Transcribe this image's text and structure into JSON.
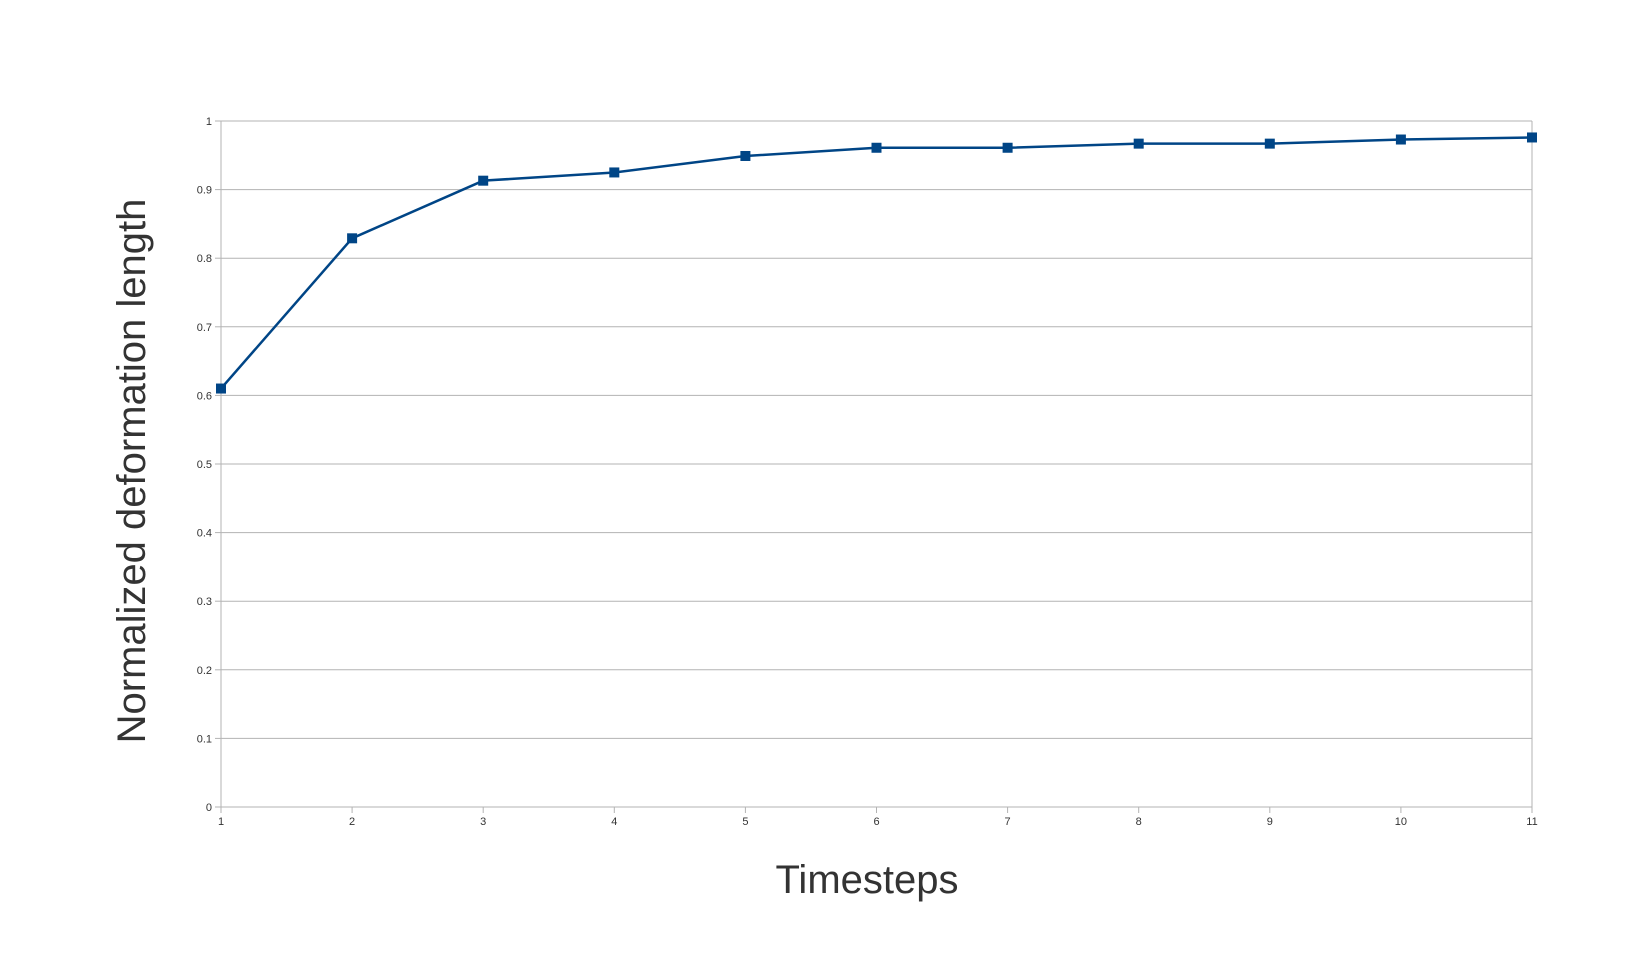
{
  "chart_data": {
    "type": "line",
    "title": "",
    "xlabel": "Timesteps",
    "ylabel": "Normalized deformation length",
    "x": [
      1,
      2,
      3,
      4,
      5,
      6,
      7,
      8,
      9,
      10,
      11
    ],
    "series": [
      {
        "values": [
          0.61,
          0.829,
          0.913,
          0.925,
          0.949,
          0.961,
          0.961,
          0.967,
          0.967,
          0.973,
          0.976
        ]
      }
    ],
    "x_ticks": [
      "1",
      "2",
      "3",
      "4",
      "5",
      "6",
      "7",
      "8",
      "9",
      "10",
      "11"
    ],
    "y_ticks": [
      "0",
      "0.1",
      "0.2",
      "0.3",
      "0.4",
      "0.5",
      "0.6",
      "0.7",
      "0.8",
      "0.9",
      "1"
    ],
    "xlim": [
      1,
      11
    ],
    "ylim": [
      0,
      1
    ],
    "grid": "horizontal",
    "marker": "square",
    "line_color": "#004586",
    "grid_color": "#b3b3b3",
    "legend": "none"
  }
}
